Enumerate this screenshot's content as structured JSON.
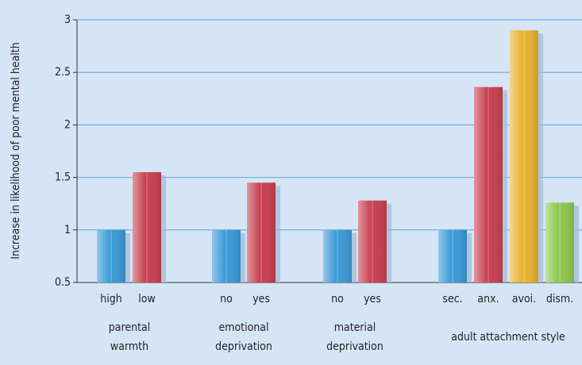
{
  "chart_data": {
    "type": "bar",
    "y_label": "Increase in likelihood of poor mental health",
    "categories": [
      "high",
      "low",
      "no",
      "yes",
      "no",
      "yes",
      "sec.",
      "anx.",
      "avoi.",
      "dism."
    ],
    "values": [
      1,
      1.55,
      1,
      1.45,
      1,
      1.28,
      1,
      2.36,
      2.9,
      1.26
    ],
    "colors": [
      "#3b9ad8",
      "#c9404f",
      "#3b9ad8",
      "#c9404f",
      "#3b9ad8",
      "#c9404f",
      "#3b9ad8",
      "#c9404f",
      "#e8b22e",
      "#8cc84e"
    ],
    "group_labels": [
      [
        "parental",
        "warmth"
      ],
      [
        "emotional",
        "deprivation"
      ],
      [
        "material",
        "deprivation"
      ],
      [
        "adult attachment style"
      ]
    ],
    "ylim": [
      0.5,
      3
    ],
    "yticks": [
      0.5,
      1,
      1.5,
      2,
      2.5,
      3
    ],
    "grid": true
  }
}
